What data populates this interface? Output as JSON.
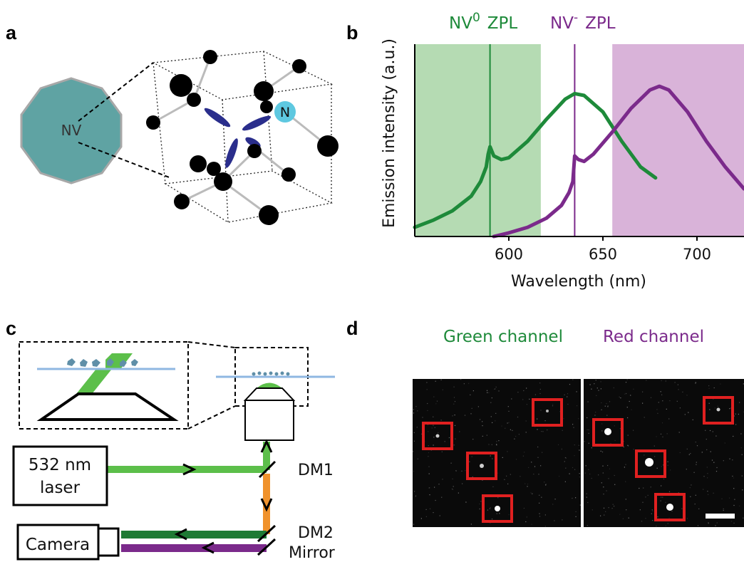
{
  "panels": {
    "a": {
      "letter": "a",
      "nv_label": "NV",
      "n_label": "N"
    },
    "b": {
      "letter": "b",
      "label_nv0": "NV",
      "label_nv0_sup": "0",
      "label_nv0_zpl": "ZPL",
      "label_nvm": "NV",
      "label_nvm_sup": "-",
      "label_nvm_zpl": "ZPL",
      "colors": {
        "nv0": "#1e8a3a",
        "nvm": "#7b2a8b",
        "green_band": "#b5dbb3",
        "red_band": "#d9b3d9"
      }
    },
    "c": {
      "letter": "c",
      "laser_line1": "532 nm",
      "laser_line2": "laser",
      "camera_label": "Camera",
      "dm1": "DM1",
      "dm2": "DM2",
      "mirror": "Mirror",
      "colors": {
        "green_beam": "#5cbf4a",
        "dark_green_beam": "#1e7a34",
        "purple_beam": "#7b2a8b",
        "orange_beam": "#f0922c",
        "coverslip": "#8fb7e2"
      }
    },
    "d": {
      "letter": "d",
      "green_channel": "Green channel",
      "red_channel": "Red channel",
      "box_color": "#e02020"
    }
  },
  "chart_data": {
    "type": "line",
    "title": "",
    "xlabel": "Wavelength (nm)",
    "ylabel": "Emission intensity (a.u.)",
    "xlim": [
      550,
      725
    ],
    "ylim": [
      0,
      1.05
    ],
    "xticks": [
      600,
      650,
      700
    ],
    "zpl_lines": {
      "NV0": 590,
      "NV-": 635
    },
    "shaded_bands": [
      {
        "from": 550,
        "to": 617,
        "color": "#b5dbb3"
      },
      {
        "from": 655,
        "to": 725,
        "color": "#d9b3d9"
      }
    ],
    "series": [
      {
        "name": "NV0",
        "color": "#1e8a3a",
        "x": [
          550,
          560,
          570,
          580,
          585,
          588,
          589,
          590,
          592,
          596,
          600,
          610,
          620,
          630,
          635,
          640,
          650,
          660,
          670,
          678
        ],
        "y": [
          0.05,
          0.09,
          0.14,
          0.22,
          0.3,
          0.38,
          0.45,
          0.49,
          0.44,
          0.42,
          0.43,
          0.52,
          0.64,
          0.75,
          0.78,
          0.77,
          0.68,
          0.52,
          0.38,
          0.32
        ]
      },
      {
        "name": "NV-",
        "color": "#7b2a8b",
        "x": [
          592,
          600,
          610,
          620,
          628,
          632,
          634,
          635,
          637,
          640,
          645,
          655,
          665,
          675,
          680,
          685,
          695,
          705,
          715,
          725
        ],
        "y": [
          0.0,
          0.02,
          0.05,
          0.1,
          0.17,
          0.24,
          0.3,
          0.44,
          0.42,
          0.41,
          0.45,
          0.57,
          0.7,
          0.8,
          0.82,
          0.8,
          0.68,
          0.52,
          0.38,
          0.26
        ]
      }
    ]
  }
}
